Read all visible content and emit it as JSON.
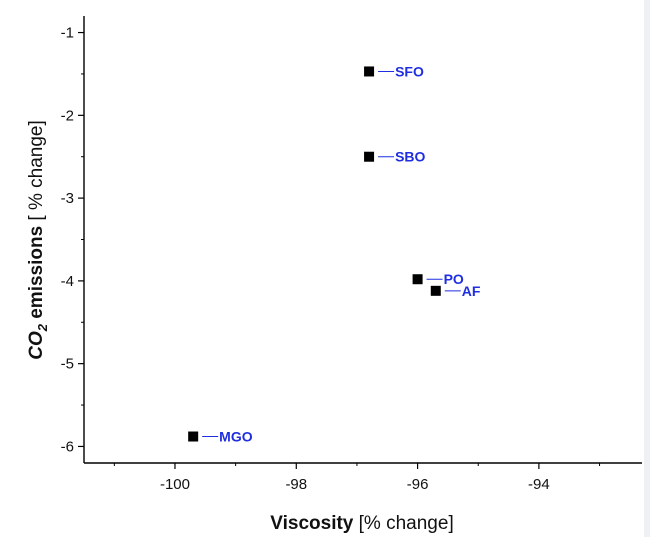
{
  "chart_data": {
    "type": "scatter",
    "xlabel_bold": "Viscosity",
    "xlabel_rest": " [% change]",
    "ylabel_co": "CO",
    "ylabel_sub": "2",
    "ylabel_bold_rest": " emissions",
    "ylabel_rest": " [ % change]",
    "xlim": [
      -101.5,
      -92.3
    ],
    "ylim": [
      -6.2,
      -0.8
    ],
    "x_ticks": [
      -100,
      -98,
      -96,
      -94
    ],
    "y_ticks": [
      -1,
      -2,
      -3,
      -4,
      -5,
      -6
    ],
    "x_tick_labels": [
      "-100",
      "-98",
      "-96",
      "-94"
    ],
    "y_tick_labels": [
      "-1",
      "-2",
      "-3",
      "-4",
      "-5",
      "-6"
    ],
    "label_color": "#1f2fe0",
    "marker_color": "#000000",
    "points": [
      {
        "label": "SFO",
        "x": -96.8,
        "y": -1.47
      },
      {
        "label": "SBO",
        "x": -96.8,
        "y": -2.5
      },
      {
        "label": "PO",
        "x": -96.0,
        "y": -3.98
      },
      {
        "label": "AF",
        "x": -95.7,
        "y": -4.12
      },
      {
        "label": "MGO",
        "x": -99.7,
        "y": -5.88
      }
    ]
  }
}
